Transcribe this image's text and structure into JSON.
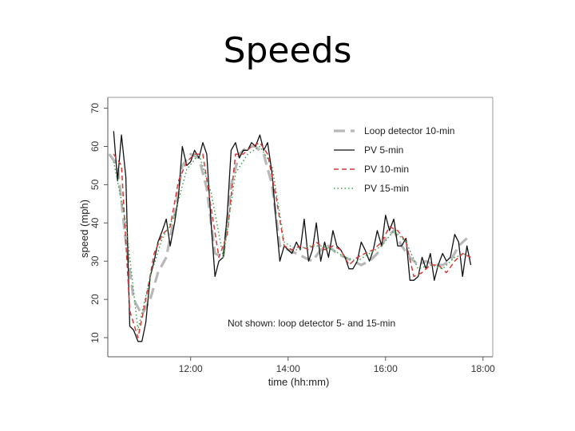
{
  "slide": {
    "title": "Speeds"
  },
  "chart_data": {
    "type": "line",
    "title": "",
    "xlabel": "time (hh:mm)",
    "ylabel": "speed (mph)",
    "xlim": [
      10.3,
      18.2
    ],
    "ylim": [
      5,
      72
    ],
    "xticks": [
      {
        "v": 12,
        "label": "12:00"
      },
      {
        "v": 14,
        "label": "14:00"
      },
      {
        "v": 16,
        "label": "16:00"
      },
      {
        "v": 18,
        "label": "18:00"
      }
    ],
    "yticks": [
      10,
      20,
      30,
      40,
      50,
      60,
      70
    ],
    "legend_position": "top-right",
    "note": "Not shown: loop detector 5- and 15-min",
    "colors": {
      "loop10": "#b8b8b8",
      "pv5": "#111111",
      "pv10": "#d33a3a",
      "pv15": "#3aa04a"
    },
    "series": [
      {
        "key": "loop10",
        "name": "Loop detector 10-min",
        "style": "longdash",
        "x": [
          10.33,
          10.5,
          10.67,
          10.83,
          11.0,
          11.17,
          11.33,
          11.5,
          11.67,
          11.83,
          12.0,
          12.17,
          12.33,
          12.5,
          12.67,
          12.83,
          13.0,
          13.17,
          13.33,
          13.5,
          13.67,
          13.83,
          14.0,
          14.17,
          14.33,
          14.5,
          14.67,
          14.83,
          15.0,
          15.17,
          15.33,
          15.5,
          15.67,
          15.83,
          16.0,
          16.17,
          16.33,
          16.5,
          16.67,
          16.83,
          17.0,
          17.17,
          17.33,
          17.5,
          17.67
        ],
        "y": [
          58,
          55,
          35,
          20,
          16,
          20,
          27,
          31,
          42,
          55,
          58,
          57,
          49,
          32,
          31,
          50,
          58,
          60,
          60,
          58,
          50,
          34,
          33,
          32,
          31,
          30,
          33,
          34,
          32,
          31,
          30,
          29,
          30,
          32,
          36,
          38,
          34,
          31,
          29,
          30,
          29,
          29,
          30,
          34,
          36
        ]
      },
      {
        "key": "pv5",
        "name": "PV 5-min",
        "style": "solid",
        "x": [
          10.42,
          10.5,
          10.58,
          10.67,
          10.75,
          10.83,
          10.92,
          11.0,
          11.08,
          11.17,
          11.25,
          11.33,
          11.42,
          11.5,
          11.58,
          11.67,
          11.75,
          11.83,
          11.92,
          12.0,
          12.08,
          12.17,
          12.25,
          12.33,
          12.42,
          12.5,
          12.58,
          12.67,
          12.75,
          12.83,
          12.92,
          13.0,
          13.08,
          13.17,
          13.25,
          13.33,
          13.42,
          13.5,
          13.58,
          13.67,
          13.75,
          13.83,
          13.92,
          14.0,
          14.08,
          14.17,
          14.25,
          14.33,
          14.42,
          14.5,
          14.58,
          14.67,
          14.75,
          14.83,
          14.92,
          15.0,
          15.08,
          15.17,
          15.25,
          15.33,
          15.42,
          15.5,
          15.58,
          15.67,
          15.75,
          15.83,
          15.92,
          16.0,
          16.08,
          16.17,
          16.25,
          16.33,
          16.42,
          16.5,
          16.58,
          16.67,
          16.75,
          16.83,
          16.92,
          17.0,
          17.08,
          17.17,
          17.25,
          17.33,
          17.42,
          17.5,
          17.58,
          17.67,
          17.75
        ],
        "y": [
          64,
          51,
          63,
          52,
          13,
          12,
          9,
          9,
          14,
          26,
          30,
          35,
          38,
          41,
          34,
          40,
          47,
          60,
          55,
          56,
          59,
          57,
          61,
          58,
          40,
          26,
          30,
          31,
          42,
          59,
          61,
          57,
          59,
          59,
          61,
          60,
          63,
          59,
          61,
          53,
          41,
          30,
          34,
          33,
          32,
          35,
          33,
          41,
          30,
          33,
          40,
          30,
          35,
          31,
          38,
          34,
          33,
          31,
          28,
          28,
          30,
          35,
          33,
          30,
          33,
          38,
          34,
          42,
          38,
          41,
          34,
          34,
          36,
          25,
          25,
          26,
          31,
          28,
          32,
          25,
          29,
          32,
          30,
          31,
          37,
          35,
          26,
          34,
          29
        ]
      },
      {
        "key": "pv10",
        "name": "PV 10-min",
        "style": "dashed",
        "x": [
          10.42,
          10.58,
          10.75,
          10.92,
          11.08,
          11.25,
          11.42,
          11.58,
          11.75,
          11.92,
          12.08,
          12.25,
          12.42,
          12.58,
          12.75,
          12.92,
          13.08,
          13.25,
          13.42,
          13.58,
          13.75,
          13.92,
          14.08,
          14.25,
          14.42,
          14.58,
          14.75,
          14.92,
          15.08,
          15.25,
          15.42,
          15.58,
          15.75,
          15.92,
          16.08,
          16.25,
          16.42,
          16.58,
          16.75,
          16.92,
          17.08,
          17.25,
          17.42,
          17.58,
          17.75
        ],
        "y": [
          58,
          55,
          17,
          10,
          20,
          32,
          37,
          39,
          51,
          56,
          58,
          58,
          44,
          31,
          37,
          58,
          58,
          60,
          61,
          58,
          47,
          34,
          33,
          34,
          33,
          35,
          33,
          34,
          33,
          29,
          31,
          32,
          33,
          35,
          39,
          38,
          35,
          26,
          27,
          29,
          29,
          27,
          30,
          32,
          31
        ]
      },
      {
        "key": "pv15",
        "name": "PV 15-min",
        "style": "dotted",
        "x": [
          10.42,
          10.67,
          10.92,
          11.17,
          11.42,
          11.67,
          11.92,
          12.17,
          12.42,
          12.67,
          12.92,
          13.17,
          13.42,
          13.67,
          13.92,
          14.17,
          14.42,
          14.67,
          14.92,
          15.17,
          15.42,
          15.67,
          15.92,
          16.17,
          16.42,
          16.67,
          16.92,
          17.17,
          17.42,
          17.67
        ],
        "y": [
          56,
          40,
          12,
          26,
          36,
          42,
          54,
          58,
          48,
          31,
          53,
          58,
          60,
          55,
          35,
          33,
          34,
          34,
          33,
          31,
          30,
          32,
          34,
          38,
          35,
          28,
          29,
          28,
          31,
          32
        ]
      }
    ]
  }
}
